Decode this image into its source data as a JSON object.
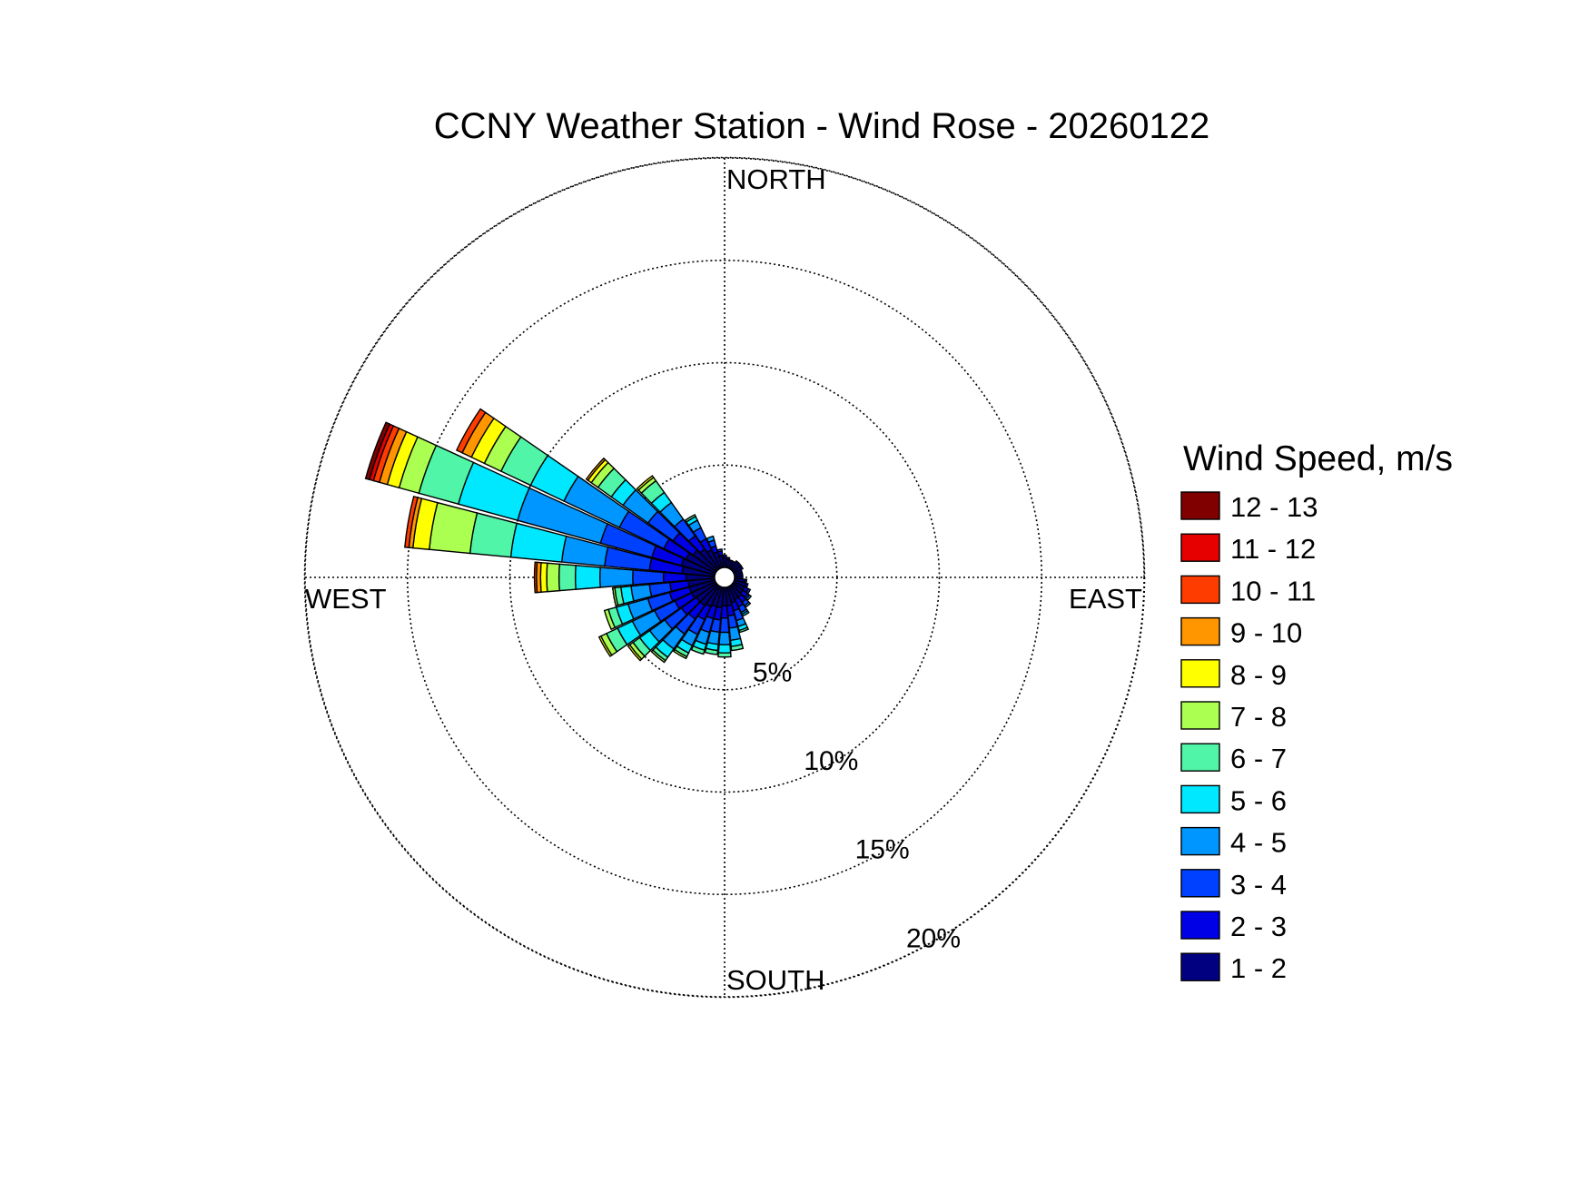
{
  "chart_data": {
    "type": "windrose",
    "title": "CCNY Weather Station - Wind Rose - 20260122",
    "direction_labels": {
      "north": "NORTH",
      "east": "EAST",
      "south": "SOUTH",
      "west": "WEST"
    },
    "radial_ticks": [
      5,
      10,
      15,
      20
    ],
    "radial_tick_labels": [
      "5%",
      "10%",
      "15%",
      "20%"
    ],
    "radial_max": 20,
    "legend_title": "Wind Speed, m/s",
    "speed_bins": [
      {
        "label": "1 - 2",
        "color": "#000080"
      },
      {
        "label": "2 - 3",
        "color": "#0000e6"
      },
      {
        "label": "3 - 4",
        "color": "#0040ff"
      },
      {
        "label": "4 - 5",
        "color": "#0096ff"
      },
      {
        "label": "5 - 6",
        "color": "#00e8ff"
      },
      {
        "label": "6 - 7",
        "color": "#50f5a8"
      },
      {
        "label": "7 - 8",
        "color": "#aaff50"
      },
      {
        "label": "8 - 9",
        "color": "#ffff00"
      },
      {
        "label": "9 - 10",
        "color": "#ff9600"
      },
      {
        "label": "10 - 11",
        "color": "#ff3c00"
      },
      {
        "label": "11 - 12",
        "color": "#e60000"
      },
      {
        "label": "12 - 13",
        "color": "#800000"
      }
    ],
    "series": [
      {
        "direction_deg": 290,
        "cumulative": [
          1.7,
          3.2,
          5.8,
          10.0,
          13.0,
          15.0,
          16.0,
          16.6,
          17.0,
          17.3,
          17.5,
          17.7
        ]
      },
      {
        "direction_deg": 300,
        "cumulative": [
          1.6,
          2.8,
          5.2,
          8.2,
          10.0,
          11.6,
          12.5,
          13.2,
          13.7,
          14.0,
          14.0,
          14.0
        ]
      },
      {
        "direction_deg": 280,
        "cumulative": [
          1.6,
          3.2,
          5.4,
          7.5,
          10.0,
          12.0,
          14.0,
          14.8,
          15.0,
          15.2,
          15.2,
          15.2
        ]
      },
      {
        "direction_deg": 310,
        "cumulative": [
          1.4,
          2.6,
          4.1,
          5.6,
          6.3,
          7.1,
          7.5,
          7.7,
          7.8,
          7.8,
          7.8,
          7.8
        ]
      },
      {
        "direction_deg": 270,
        "cumulative": [
          1.4,
          2.5,
          4.0,
          5.6,
          6.8,
          7.6,
          8.2,
          8.5,
          8.7,
          8.8,
          8.8,
          8.8
        ]
      },
      {
        "direction_deg": 320,
        "cumulative": [
          1.2,
          2.0,
          3.0,
          4.0,
          4.6,
          5.3,
          5.5,
          5.6,
          5.6,
          5.6,
          5.6,
          5.6
        ]
      },
      {
        "direction_deg": 330,
        "cumulative": [
          1.0,
          1.6,
          2.2,
          2.6,
          2.8,
          2.9,
          2.9,
          2.9,
          2.9,
          2.9,
          2.9,
          2.9
        ]
      },
      {
        "direction_deg": 340,
        "cumulative": [
          0.8,
          1.1,
          1.4,
          1.6,
          1.6,
          1.6,
          1.6,
          1.6,
          1.6,
          1.6,
          1.6,
          1.6
        ]
      },
      {
        "direction_deg": 350,
        "cumulative": [
          0.6,
          0.8,
          0.9,
          0.9,
          0.9,
          0.9,
          0.9,
          0.9,
          0.9,
          0.9,
          0.9,
          0.9
        ]
      },
      {
        "direction_deg": 0,
        "cumulative": [
          0.5,
          0.6,
          0.6,
          0.6,
          0.6,
          0.6,
          0.6,
          0.6,
          0.6,
          0.6,
          0.6,
          0.6
        ]
      },
      {
        "direction_deg": 10,
        "cumulative": [
          0.4,
          0.5,
          0.5,
          0.5,
          0.5,
          0.5,
          0.5,
          0.5,
          0.5,
          0.5,
          0.5,
          0.5
        ]
      },
      {
        "direction_deg": 20,
        "cumulative": [
          0.4,
          0.4,
          0.4,
          0.4,
          0.4,
          0.4,
          0.4,
          0.4,
          0.4,
          0.4,
          0.4,
          0.4
        ]
      },
      {
        "direction_deg": 30,
        "cumulative": [
          0.4,
          0.4,
          0.4,
          0.4,
          0.4,
          0.4,
          0.4,
          0.4,
          0.4,
          0.4,
          0.4,
          0.4
        ]
      },
      {
        "direction_deg": 40,
        "cumulative": [
          0.5,
          0.5,
          0.5,
          0.5,
          0.5,
          0.5,
          0.5,
          0.5,
          0.5,
          0.5,
          0.5,
          0.5
        ]
      },
      {
        "direction_deg": 50,
        "cumulative": [
          0.5,
          0.5,
          0.5,
          0.5,
          0.5,
          0.5,
          0.5,
          0.5,
          0.5,
          0.5,
          0.5,
          0.5
        ]
      },
      {
        "direction_deg": 60,
        "cumulative": [
          0.5,
          0.5,
          0.5,
          0.5,
          0.5,
          0.5,
          0.5,
          0.5,
          0.5,
          0.5,
          0.5,
          0.5
        ]
      },
      {
        "direction_deg": 70,
        "cumulative": [
          0.4,
          0.4,
          0.4,
          0.4,
          0.4,
          0.4,
          0.4,
          0.4,
          0.4,
          0.4,
          0.4,
          0.4
        ]
      },
      {
        "direction_deg": 80,
        "cumulative": [
          0.4,
          0.4,
          0.4,
          0.4,
          0.4,
          0.4,
          0.4,
          0.4,
          0.4,
          0.4,
          0.4,
          0.4
        ]
      },
      {
        "direction_deg": 90,
        "cumulative": [
          0.4,
          0.4,
          0.4,
          0.4,
          0.4,
          0.4,
          0.4,
          0.4,
          0.4,
          0.4,
          0.4,
          0.4
        ]
      },
      {
        "direction_deg": 100,
        "cumulative": [
          0.5,
          0.6,
          0.6,
          0.6,
          0.6,
          0.6,
          0.6,
          0.6,
          0.6,
          0.6,
          0.6,
          0.6
        ]
      },
      {
        "direction_deg": 110,
        "cumulative": [
          0.6,
          0.7,
          0.7,
          0.7,
          0.7,
          0.7,
          0.7,
          0.7,
          0.7,
          0.7,
          0.7,
          0.7
        ]
      },
      {
        "direction_deg": 120,
        "cumulative": [
          0.6,
          0.8,
          0.9,
          0.9,
          0.9,
          0.9,
          0.9,
          0.9,
          0.9,
          0.9,
          0.9,
          0.9
        ]
      },
      {
        "direction_deg": 130,
        "cumulative": [
          0.6,
          0.9,
          1.0,
          1.1,
          1.1,
          1.1,
          1.1,
          1.1,
          1.1,
          1.1,
          1.1,
          1.1
        ]
      },
      {
        "direction_deg": 140,
        "cumulative": [
          0.7,
          1.0,
          1.2,
          1.3,
          1.3,
          1.3,
          1.3,
          1.3,
          1.3,
          1.3,
          1.3,
          1.3
        ]
      },
      {
        "direction_deg": 150,
        "cumulative": [
          0.7,
          1.1,
          1.4,
          1.5,
          1.6,
          1.6,
          1.6,
          1.6,
          1.6,
          1.6,
          1.6,
          1.6
        ]
      },
      {
        "direction_deg": 160,
        "cumulative": [
          0.8,
          1.2,
          1.7,
          2.0,
          2.2,
          2.3,
          2.3,
          2.3,
          2.3,
          2.3,
          2.3,
          2.3
        ]
      },
      {
        "direction_deg": 170,
        "cumulative": [
          0.9,
          1.4,
          2.0,
          2.6,
          2.9,
          3.1,
          3.1,
          3.1,
          3.1,
          3.1,
          3.1,
          3.1
        ]
      },
      {
        "direction_deg": 180,
        "cumulative": [
          0.9,
          1.5,
          2.2,
          2.8,
          3.2,
          3.4,
          3.4,
          3.4,
          3.4,
          3.4,
          3.4,
          3.4
        ]
      },
      {
        "direction_deg": 190,
        "cumulative": [
          1.0,
          1.6,
          2.2,
          2.8,
          3.1,
          3.3,
          3.3,
          3.3,
          3.3,
          3.3,
          3.3,
          3.3
        ]
      },
      {
        "direction_deg": 200,
        "cumulative": [
          1.0,
          1.6,
          2.3,
          2.9,
          3.2,
          3.4,
          3.4,
          3.4,
          3.4,
          3.4,
          3.4,
          3.4
        ]
      },
      {
        "direction_deg": 210,
        "cumulative": [
          1.1,
          1.8,
          2.6,
          3.2,
          3.6,
          3.8,
          3.9,
          3.9,
          3.9,
          3.9,
          3.9,
          3.9
        ]
      },
      {
        "direction_deg": 220,
        "cumulative": [
          1.2,
          2.0,
          2.9,
          3.8,
          4.3,
          4.5,
          4.6,
          4.6,
          4.6,
          4.6,
          4.6,
          4.6
        ]
      },
      {
        "direction_deg": 230,
        "cumulative": [
          1.2,
          2.1,
          3.1,
          4.0,
          4.6,
          5.0,
          5.2,
          5.3,
          5.3,
          5.3,
          5.3,
          5.3
        ]
      },
      {
        "direction_deg": 240,
        "cumulative": [
          1.3,
          2.2,
          3.3,
          4.5,
          5.3,
          5.9,
          6.2,
          6.3,
          6.3,
          6.3,
          6.3,
          6.3
        ]
      },
      {
        "direction_deg": 250,
        "cumulative": [
          1.3,
          2.3,
          3.4,
          4.4,
          5.0,
          5.4,
          5.6,
          5.6,
          5.6,
          5.6,
          5.6,
          5.6
        ]
      },
      {
        "direction_deg": 260,
        "cumulative": [
          1.3,
          2.2,
          3.2,
          4.1,
          4.6,
          4.9,
          5.0,
          5.0,
          5.0,
          5.0,
          5.0,
          5.0
        ]
      }
    ]
  }
}
